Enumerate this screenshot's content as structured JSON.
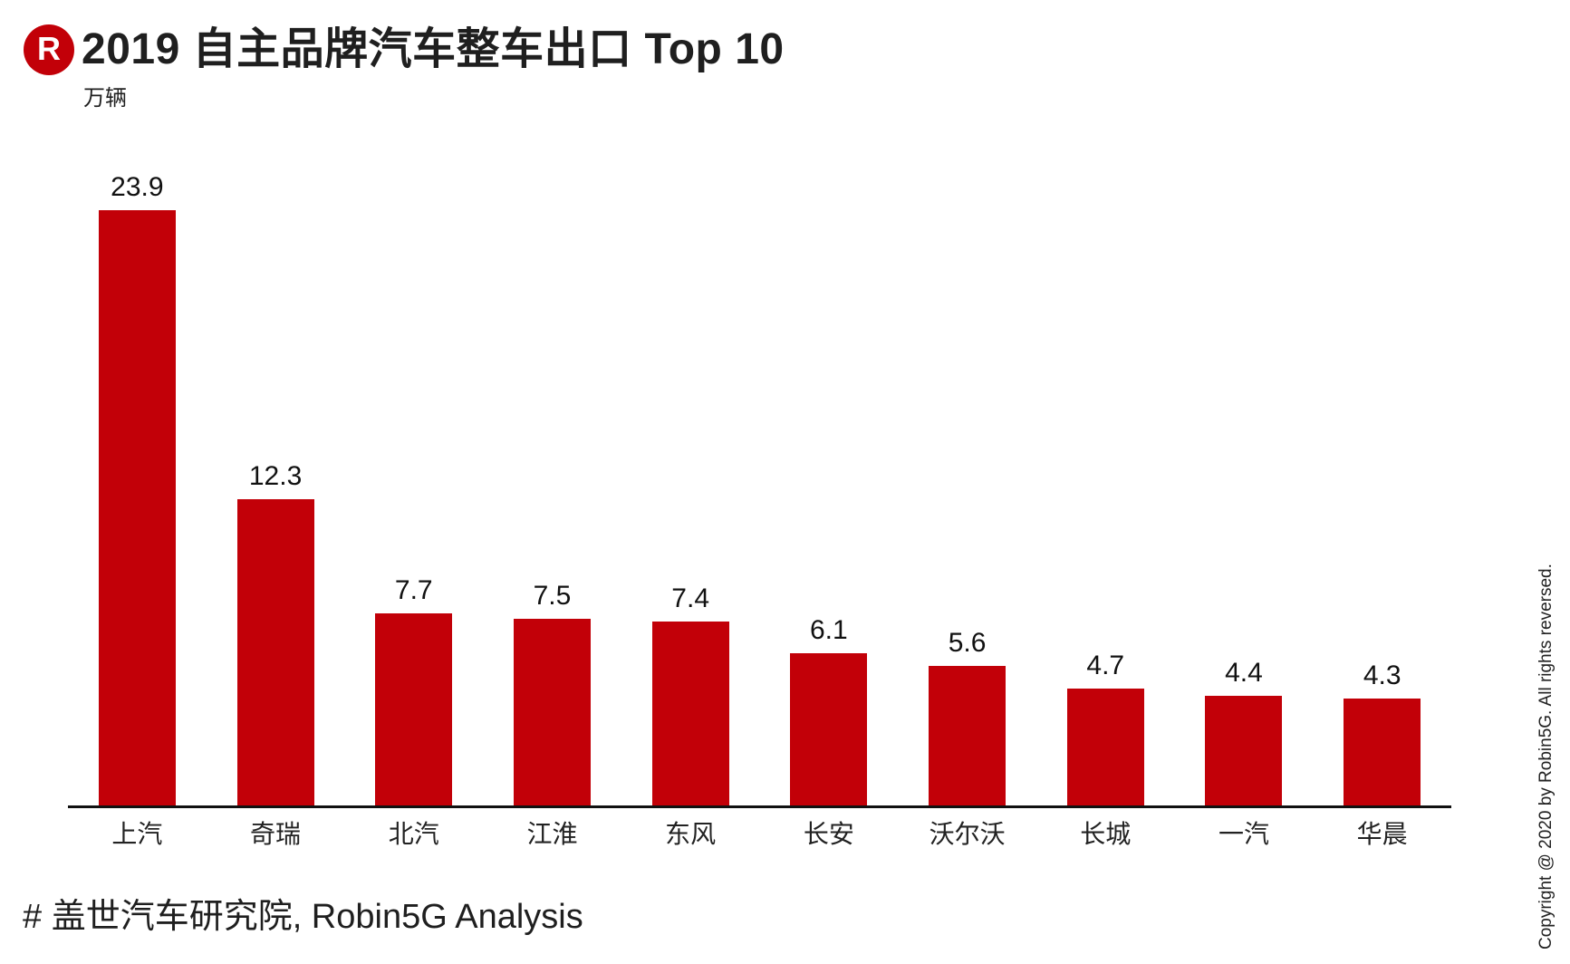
{
  "header": {
    "logo_letter": "R",
    "title": "2019 自主品牌汽车整车出口 Top 10",
    "unit_label": "万辆"
  },
  "chart_data": {
    "type": "bar",
    "title": "2019 自主品牌汽车整车出口 Top 10",
    "ylabel": "万辆",
    "xlabel": "",
    "categories": [
      "上汽",
      "奇瑞",
      "北汽",
      "江淮",
      "东风",
      "长安",
      "沃尔沃",
      "长城",
      "一汽",
      "华晨"
    ],
    "values": [
      23.9,
      12.3,
      7.7,
      7.5,
      7.4,
      6.1,
      5.6,
      4.7,
      4.4,
      4.3
    ],
    "value_labels": [
      "23.9",
      "12.3",
      "7.7",
      "7.5",
      "7.4",
      "6.1",
      "5.6",
      "4.7",
      "4.4",
      "4.3"
    ],
    "bar_color": "#c20008",
    "ylim": [
      0,
      25
    ],
    "grid": false,
    "legend": "none",
    "value_labels_shown": true
  },
  "footer": {
    "source_note": "# 盖世汽车研究院, Robin5G Analysis",
    "copyright_vertical": "Copyright @ 2020 by Robin5G. All rights reversed."
  },
  "colors": {
    "accent_red": "#c20008",
    "axis_black": "#111111",
    "text_dark": "#1f1f1f"
  }
}
